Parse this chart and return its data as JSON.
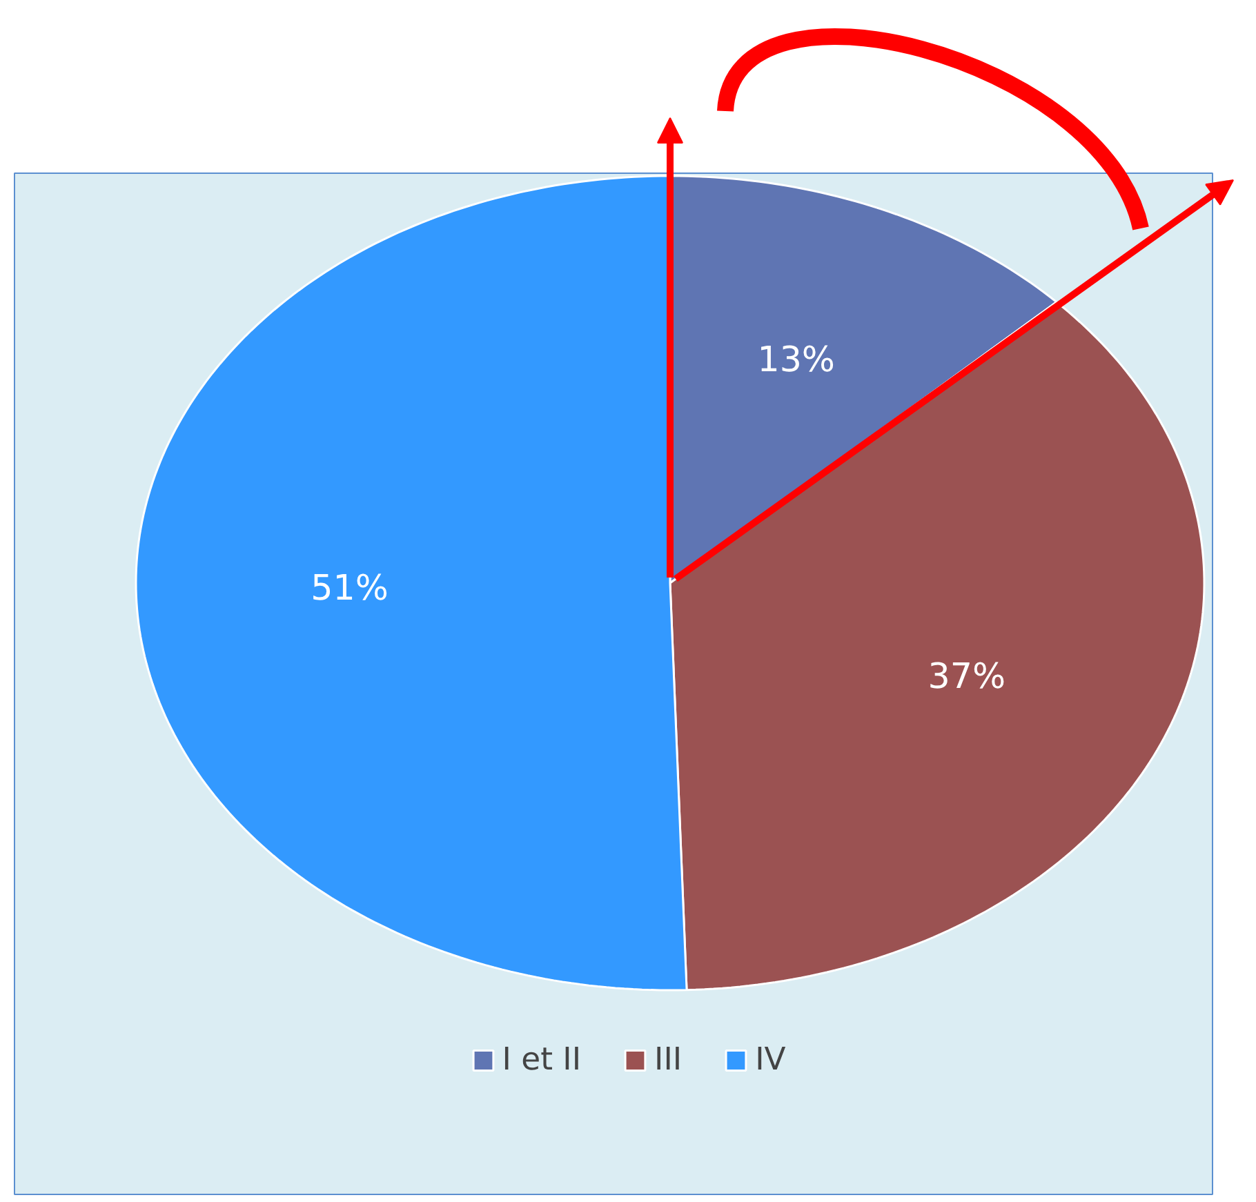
{
  "chart_data": {
    "type": "pie",
    "categories": [
      "I et II",
      "III",
      "IV"
    ],
    "values": [
      13,
      37,
      51
    ],
    "colors": [
      "#5f75b3",
      "#9b5252",
      "#3399ff"
    ],
    "value_labels": [
      "13%",
      "37%",
      "51%"
    ],
    "legend": "bottom"
  }
}
